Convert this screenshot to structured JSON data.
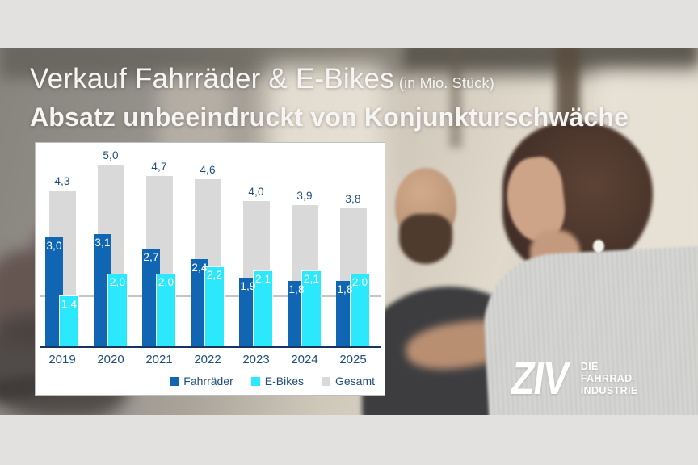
{
  "slide": {
    "title_line1": "Verkauf Fahrräder & E-Bikes",
    "title_suffix": "(in Mio. Stück)",
    "title_line2": "Absatz unbeeindruckt von Konjunkturschwäche"
  },
  "logo": {
    "mark": "ZIV",
    "tagline_lines": [
      "DIE",
      "FAHRRAD-",
      "INDUSTRIE"
    ]
  },
  "chart_data": {
    "type": "bar",
    "title": "Verkauf Fahrräder & E-Bikes (in Mio. Stück)",
    "categories": [
      "2019",
      "2020",
      "2021",
      "2022",
      "2023",
      "2024",
      "2025"
    ],
    "series": [
      {
        "name": "Fahrräder",
        "color": "#1066b2",
        "values": [
          3.0,
          3.1,
          2.7,
          2.4,
          1.9,
          1.8,
          1.8
        ],
        "labels": [
          "3,0",
          "3,1",
          "2,7",
          "2,4",
          "1,9",
          "1,8",
          "1,8"
        ]
      },
      {
        "name": "E-Bikes",
        "color": "#2ce8fc",
        "values": [
          1.4,
          2.0,
          2.0,
          2.2,
          2.1,
          2.1,
          2.0
        ],
        "labels": [
          "1,4",
          "2,0",
          "2,0",
          "2,2",
          "2,1",
          "2,1",
          "2,0"
        ]
      },
      {
        "name": "Gesamt",
        "color": "#d9d9d9",
        "values": [
          4.3,
          5.0,
          4.7,
          4.6,
          4.0,
          3.9,
          3.8
        ],
        "labels": [
          "4,3",
          "5,0",
          "4,7",
          "4,6",
          "4,0",
          "3,9",
          "3,8"
        ]
      }
    ],
    "legend": [
      "Fahrräder",
      "E-Bikes",
      "Gesamt"
    ],
    "legend_position": "bottom-right",
    "reference_line_value": 1.4,
    "ylim": [
      0,
      5.5
    ],
    "grid": false,
    "value_label_colors": {
      "gesamt": "#1f4e79",
      "on_bar": "#ffffff"
    },
    "axis_color": "#17365d"
  }
}
